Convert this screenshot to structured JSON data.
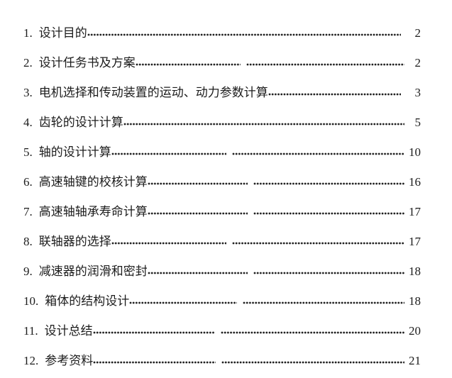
{
  "page": {
    "background_color": "#ffffff",
    "text_color": "#1c1c1c"
  },
  "toc": {
    "entries": [
      {
        "num": "1.",
        "title": "设计目的",
        "page": "2"
      },
      {
        "num": "2.",
        "title": "设计任务书及方案",
        "page": "2"
      },
      {
        "num": "3.",
        "title": "电机选择和传动装置的运动、动力参数计算",
        "page": "3"
      },
      {
        "num": "4.",
        "title": "齿轮的设计计算",
        "page": "5"
      },
      {
        "num": "5.",
        "title": "轴的设计计算",
        "page": "10"
      },
      {
        "num": "6.",
        "title": "高速轴键的校核计算",
        "page": "16"
      },
      {
        "num": "7.",
        "title": "高速轴轴承寿命计算",
        "page": "17"
      },
      {
        "num": "8.",
        "title": "联轴器的选择",
        "page": "17"
      },
      {
        "num": "9.",
        "title": "减速器的润滑和密封",
        "page": "18"
      },
      {
        "num": "10.",
        "title": "箱体的结构设计",
        "page": "18"
      },
      {
        "num": "11.",
        "title": "设计总结",
        "page": "20"
      },
      {
        "num": "12.",
        "title": "参考资料",
        "page": "21"
      }
    ]
  }
}
